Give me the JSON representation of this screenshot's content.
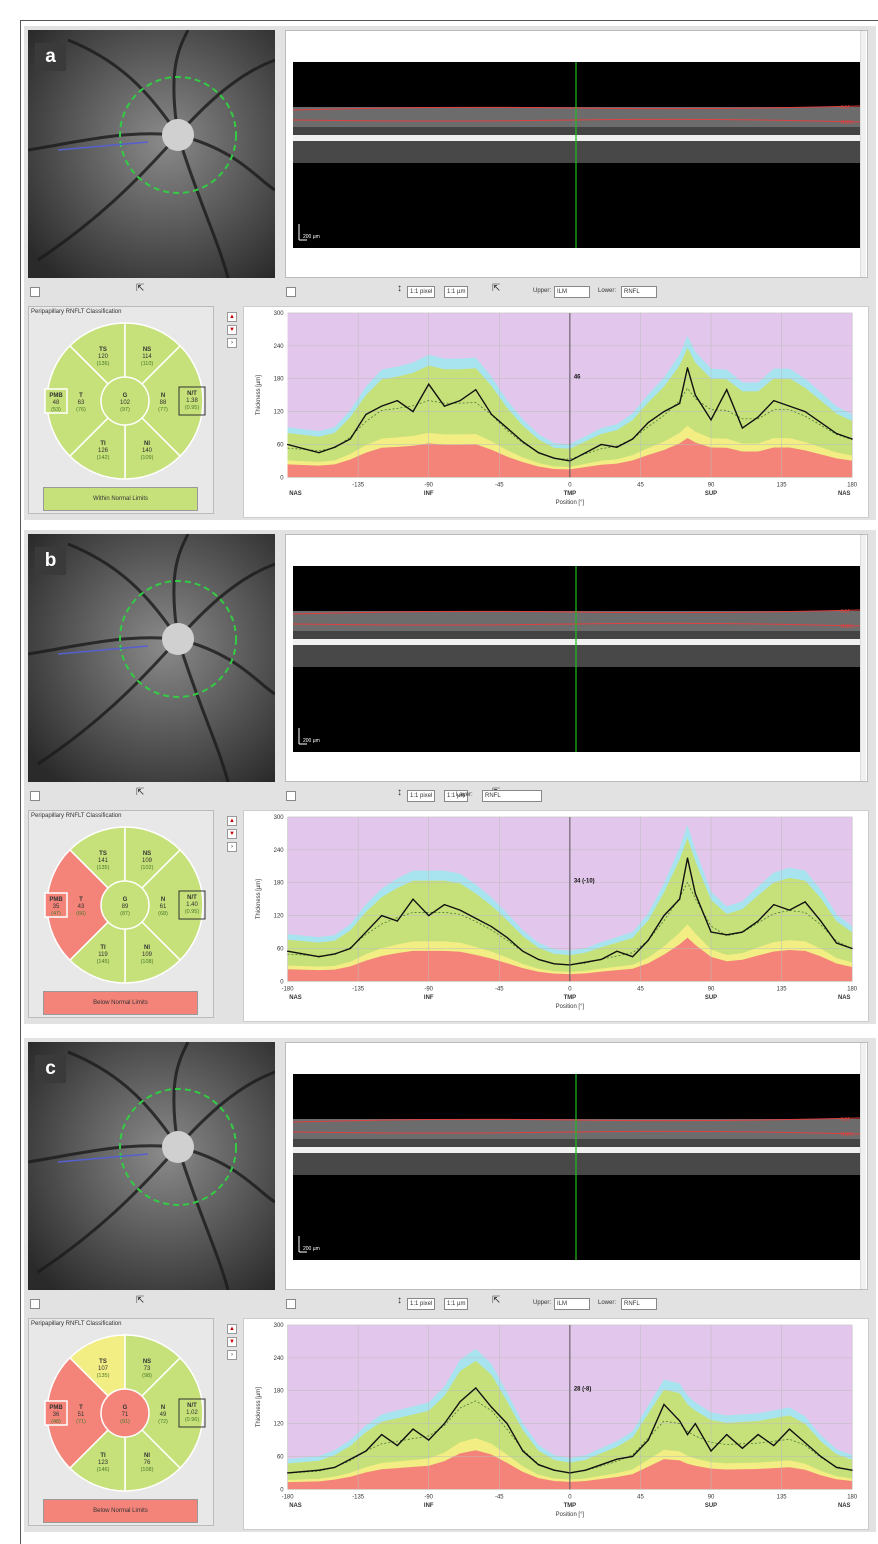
{
  "colors": {
    "outside_normal": "#f4847a",
    "borderline": "#f2ee84",
    "within_normal": "#c6e07a",
    "upper_band": "#a8e4ef",
    "background_band": "#e3c6ec",
    "measured_line": "#111111",
    "cursor_green": "#22bb22"
  },
  "toolbar": {
    "scale_1": "1:1 pixel",
    "scale_2": "1:1 µm",
    "upper_label": "Upper:",
    "upper_value": "ILM",
    "lower_label": "Lower:",
    "lower_value": "RNFL",
    "layer_label": "Layer:",
    "layer_value": "RNFL"
  },
  "common": {
    "classification_title": "Peripapillary RNFLT Classification",
    "scale_bar": "200 µm",
    "ilm_tag": "ILM",
    "rnfl_tag": "RNFL",
    "y_axis_label": "Thickness [µm]",
    "x_axis_label": "Position [°]",
    "region_labels": [
      "NAS",
      "INF",
      "TMP",
      "SUP",
      "NAS"
    ]
  },
  "panels": [
    {
      "label": "a",
      "sectors": {
        "TS": {
          "name": "TS",
          "value": "120",
          "ref": "(136)"
        },
        "NS": {
          "name": "NS",
          "value": "114",
          "ref": "(110)"
        },
        "T": {
          "name": "T",
          "value": "63",
          "ref": "(76)"
        },
        "G": {
          "name": "G",
          "value": "102",
          "ref": "(97)"
        },
        "N": {
          "name": "N",
          "value": "88",
          "ref": "(77)"
        },
        "TI": {
          "name": "TI",
          "value": "126",
          "ref": "(142)"
        },
        "NI": {
          "name": "NI",
          "value": "140",
          "ref": "(109)"
        },
        "PMB": {
          "name": "PMB",
          "value": "48",
          "ref": "(53)"
        },
        "NT": {
          "name": "N/T",
          "value": "1.38",
          "ref": "(0.95)"
        }
      },
      "status": "Within Normal Limits",
      "cursor_value": "46"
    },
    {
      "label": "b",
      "sectors": {
        "TS": {
          "name": "TS",
          "value": "141",
          "ref": "(135)"
        },
        "NS": {
          "name": "NS",
          "value": "109",
          "ref": "(102)"
        },
        "T": {
          "name": "T",
          "value": "43",
          "ref": "(66)"
        },
        "G": {
          "name": "G",
          "value": "89",
          "ref": "(87)"
        },
        "N": {
          "name": "N",
          "value": "61",
          "ref": "(68)"
        },
        "TI": {
          "name": "TI",
          "value": "119",
          "ref": "(145)"
        },
        "NI": {
          "name": "NI",
          "value": "109",
          "ref": "(108)"
        },
        "PMB": {
          "name": "PMB",
          "value": "35",
          "ref": "(47)"
        },
        "NT": {
          "name": "N/T",
          "value": "1.40",
          "ref": "(0.95)"
        }
      },
      "status": "Below Normal Limits",
      "cursor_value": "34 (-10)"
    },
    {
      "label": "c",
      "sectors": {
        "TS": {
          "name": "TS",
          "value": "107",
          "ref": "(135)"
        },
        "NS": {
          "name": "NS",
          "value": "73",
          "ref": "(98)"
        },
        "T": {
          "name": "T",
          "value": "51",
          "ref": "(71)"
        },
        "G": {
          "name": "G",
          "value": "71",
          "ref": "(91)"
        },
        "N": {
          "name": "N",
          "value": "49",
          "ref": "(72)"
        },
        "TI": {
          "name": "TI",
          "value": "123",
          "ref": "(146)"
        },
        "NI": {
          "name": "NI",
          "value": "76",
          "ref": "(108)"
        },
        "PMB": {
          "name": "PMB",
          "value": "36",
          "ref": "(48)"
        },
        "NT": {
          "name": "N/T",
          "value": "1.02",
          "ref": "(0.96)"
        }
      },
      "status": "Below Normal Limits",
      "cursor_value": "28 (-8)"
    }
  ],
  "chart_data": [
    {
      "type": "area",
      "panel": "a",
      "xlabel": "Position [°]",
      "ylabel": "Thickness [µm]",
      "xlim": [
        -180,
        180
      ],
      "ylim": [
        0,
        300
      ],
      "xticks": [
        "-135",
        "-90",
        "-45",
        "0",
        "45",
        "90",
        "135",
        "180"
      ],
      "yticks": [
        "0",
        "60",
        "120",
        "180",
        "240",
        "300"
      ],
      "x": [
        -180,
        -160,
        -150,
        -140,
        -130,
        -120,
        -110,
        -100,
        -90,
        -80,
        -70,
        -60,
        -50,
        -40,
        -30,
        -20,
        -10,
        0,
        10,
        20,
        30,
        40,
        50,
        60,
        70,
        75,
        80,
        90,
        100,
        110,
        120,
        130,
        140,
        150,
        160,
        170,
        180
      ],
      "series": [
        {
          "name": "",
          "values": [
            60,
            45,
            55,
            70,
            115,
            130,
            140,
            120,
            170,
            130,
            140,
            160,
            115,
            90,
            65,
            45,
            35,
            30,
            45,
            60,
            55,
            70,
            100,
            120,
            135,
            200,
            150,
            105,
            160,
            90,
            110,
            140,
            130,
            120,
            100,
            80,
            70
          ]
        }
      ],
      "cursor_label": "46"
    },
    {
      "type": "area",
      "panel": "b",
      "xlabel": "Position [°]",
      "ylabel": "Thickness [µm]",
      "xlim": [
        -180,
        180
      ],
      "ylim": [
        0,
        300
      ],
      "xticks": [
        "-180",
        "-135",
        "-90",
        "-45",
        "0",
        "45",
        "90",
        "135",
        "180"
      ],
      "yticks": [
        "0",
        "60",
        "120",
        "180",
        "240",
        "300"
      ],
      "x": [
        -180,
        -160,
        -150,
        -140,
        -130,
        -120,
        -110,
        -100,
        -90,
        -80,
        -70,
        -60,
        -50,
        -40,
        -30,
        -20,
        -10,
        0,
        10,
        20,
        30,
        40,
        50,
        60,
        70,
        75,
        80,
        90,
        100,
        110,
        120,
        130,
        140,
        150,
        160,
        170,
        180
      ],
      "series": [
        {
          "name": "",
          "values": [
            55,
            45,
            50,
            60,
            90,
            120,
            110,
            150,
            120,
            140,
            130,
            115,
            100,
            80,
            55,
            40,
            32,
            30,
            35,
            40,
            55,
            45,
            75,
            120,
            150,
            225,
            160,
            90,
            85,
            90,
            110,
            140,
            130,
            145,
            110,
            70,
            60
          ]
        }
      ],
      "cursor_label": "34 (-10)"
    },
    {
      "type": "area",
      "panel": "c",
      "xlabel": "Position [°]",
      "ylabel": "Thickness [µm]",
      "xlim": [
        -180,
        180
      ],
      "ylim": [
        0,
        300
      ],
      "xticks": [
        "-180",
        "-135",
        "-90",
        "-45",
        "0",
        "45",
        "90",
        "135",
        "180"
      ],
      "yticks": [
        "0",
        "60",
        "120",
        "180",
        "240",
        "300"
      ],
      "x": [
        -180,
        -160,
        -150,
        -140,
        -130,
        -120,
        -110,
        -100,
        -90,
        -80,
        -70,
        -60,
        -50,
        -40,
        -30,
        -20,
        -10,
        0,
        10,
        20,
        30,
        40,
        50,
        60,
        70,
        75,
        80,
        90,
        100,
        110,
        120,
        130,
        140,
        150,
        160,
        170,
        180
      ],
      "series": [
        {
          "name": "",
          "values": [
            30,
            35,
            40,
            55,
            70,
            100,
            80,
            110,
            90,
            120,
            160,
            185,
            150,
            120,
            70,
            45,
            35,
            30,
            35,
            45,
            55,
            60,
            90,
            155,
            125,
            100,
            120,
            70,
            100,
            75,
            100,
            80,
            110,
            85,
            60,
            40,
            35
          ]
        }
      ],
      "cursor_label": "28 (-8)"
    }
  ]
}
